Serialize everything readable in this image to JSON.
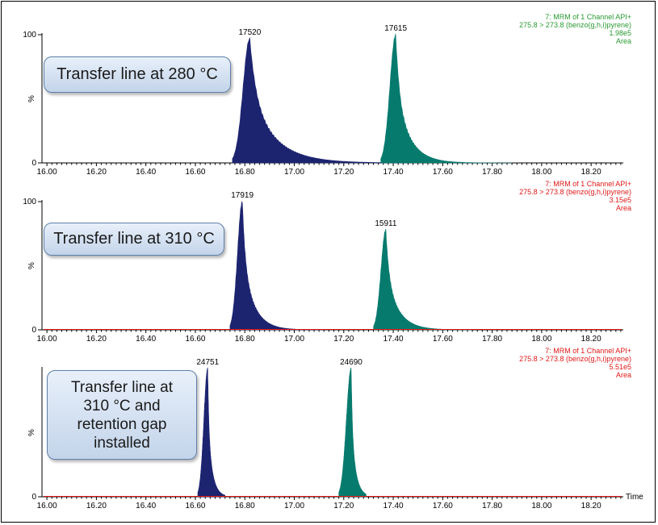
{
  "chart_data": [
    {
      "type": "area",
      "callout": "Transfer line at 280 °C",
      "header": [
        "7: MRM of 1 Channel API+",
        "275.8 > 273.8 (benzo(g,h,i)pyrene)",
        "1.98e5",
        "Area"
      ],
      "header_color": "#2a9a32",
      "ylabel": "%",
      "yticks": [
        "100",
        "0"
      ],
      "ylim": [
        0,
        100
      ],
      "xlim": [
        15.98,
        18.33
      ],
      "xticks": [
        "16.00",
        "16.20",
        "16.40",
        "16.60",
        "16.80",
        "17.00",
        "17.20",
        "17.40",
        "17.60",
        "17.80",
        "18.00",
        "18.20"
      ],
      "xlabel": "",
      "peaks": [
        {
          "apex": 16.82,
          "height": 97,
          "start": 16.75,
          "end": 17.45,
          "tail_rate": 10,
          "label": "17520",
          "color": "#1c2470"
        },
        {
          "apex": 17.41,
          "height": 100,
          "start": 17.35,
          "end": 17.88,
          "tail_rate": 18,
          "label": "17615",
          "color": "#077a6e"
        }
      ]
    },
    {
      "type": "area",
      "callout": "Transfer line at 310 °C",
      "header": [
        "7: MRM of 1 Channel API+",
        "275.8 > 273.8 (benzo(g,h,i)pyrene)",
        "3.15e5",
        "Area"
      ],
      "header_color": "#e01818",
      "ylabel": "%",
      "yticks": [
        "100",
        "0"
      ],
      "ylim": [
        0,
        100
      ],
      "xlim": [
        15.98,
        18.33
      ],
      "xticks": [
        "16.00",
        "16.20",
        "16.40",
        "16.60",
        "16.80",
        "17.00",
        "17.20",
        "17.40",
        "17.60",
        "17.80",
        "18.00",
        "18.20"
      ],
      "xlabel": "",
      "peaks": [
        {
          "apex": 16.79,
          "height": 100,
          "start": 16.74,
          "end": 17.12,
          "tail_rate": 22,
          "label": "17919",
          "color": "#1c2470"
        },
        {
          "apex": 17.37,
          "height": 78,
          "start": 17.32,
          "end": 17.72,
          "tail_rate": 20,
          "label": "15911",
          "color": "#077a6e"
        }
      ]
    },
    {
      "type": "area",
      "callout": "Transfer line at\n310 °C and\nretention gap\ninstalled",
      "header": [
        "7: MRM of 1 Channel API+",
        "275.8 > 273.8 (benzo(g,h,i)pyrene)",
        "5.51e5",
        "Area"
      ],
      "header_color": "#e01818",
      "ylabel": "%",
      "yticks": [
        "0"
      ],
      "ylim": [
        0,
        100
      ],
      "xlim": [
        15.98,
        18.33
      ],
      "xticks": [
        "16.00",
        "16.20",
        "16.40",
        "16.60",
        "16.80",
        "17.00",
        "17.20",
        "17.40",
        "17.60",
        "17.80",
        "18.00",
        "18.20"
      ],
      "xlabel": "Time",
      "peaks": [
        {
          "apex": 16.65,
          "height": 100,
          "start": 16.61,
          "end": 16.72,
          "tail_rate": 55,
          "label": "24751",
          "color": "#1c2470"
        },
        {
          "apex": 17.23,
          "height": 100,
          "start": 17.18,
          "end": 17.29,
          "tail_rate": 55,
          "label": "24690",
          "color": "#077a6e"
        }
      ]
    }
  ]
}
